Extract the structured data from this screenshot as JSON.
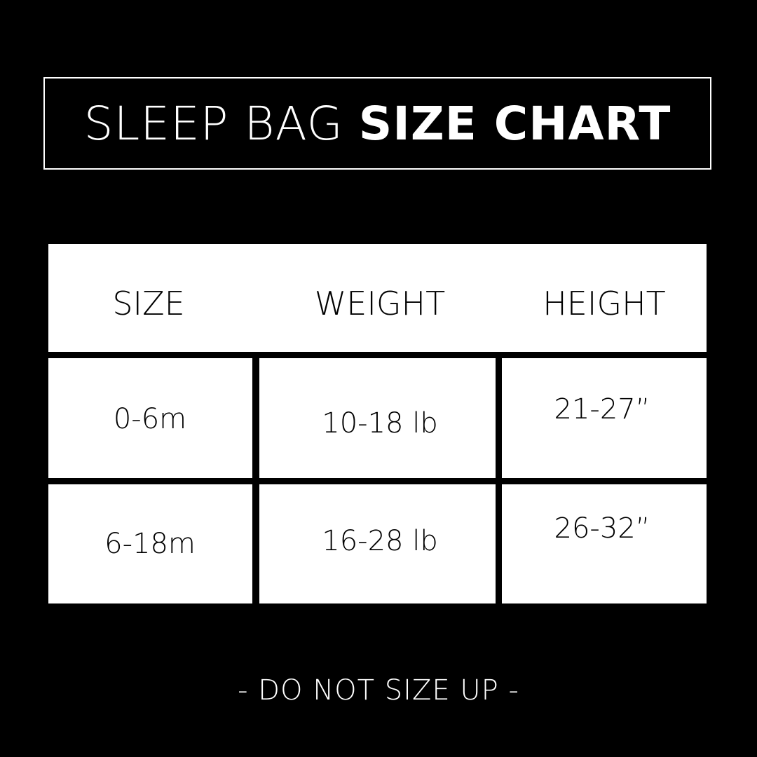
{
  "title": {
    "light": "SLEEP BAG",
    "bold": "SIZE CHART"
  },
  "table": {
    "headers": [
      "SIZE",
      "WEIGHT",
      "HEIGHT"
    ],
    "rows": [
      [
        "0-6m",
        "10-18 lb",
        "21-27”"
      ],
      [
        "6-18m",
        "16-28 lb",
        "26-32”"
      ]
    ]
  },
  "footer": "- DO NOT SIZE UP -",
  "colors": {
    "background": "#000000",
    "foreground": "#ffffff"
  }
}
